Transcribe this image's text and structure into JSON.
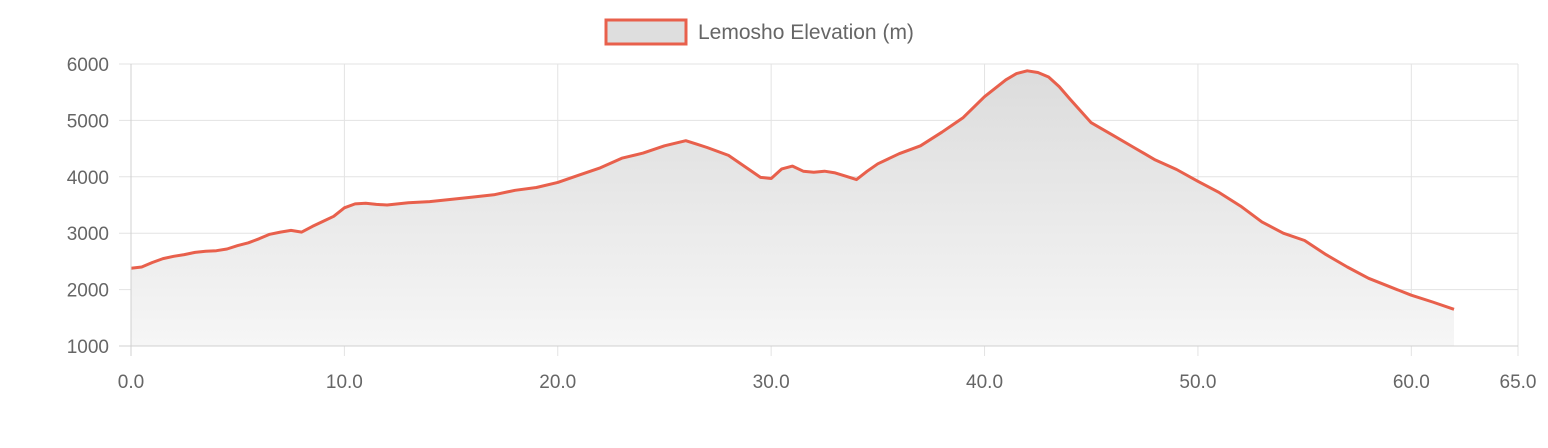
{
  "chart_data": {
    "type": "area",
    "title": "",
    "xlabel": "",
    "ylabel": "",
    "legend": {
      "position": "top",
      "entries": [
        "Lemosho Elevation (m)"
      ]
    },
    "series": [
      {
        "name": "Lemosho Elevation (m)",
        "x": [
          0.0,
          0.5,
          1.0,
          1.5,
          2.0,
          2.5,
          3.0,
          3.5,
          4.0,
          4.5,
          5.0,
          5.5,
          6.0,
          6.5,
          7.0,
          7.5,
          8.0,
          8.5,
          9.0,
          9.5,
          10.0,
          10.5,
          11.0,
          11.5,
          12.0,
          13.0,
          14.0,
          15.0,
          16.0,
          17.0,
          18.0,
          19.0,
          20.0,
          21.0,
          22.0,
          23.0,
          24.0,
          25.0,
          26.0,
          26.5,
          27.0,
          28.0,
          29.0,
          29.5,
          30.0,
          30.5,
          31.0,
          31.5,
          32.0,
          32.5,
          33.0,
          33.5,
          34.0,
          34.5,
          35.0,
          36.0,
          37.0,
          38.0,
          39.0,
          40.0,
          41.0,
          41.5,
          42.0,
          42.5,
          43.0,
          43.5,
          44.0,
          45.0,
          46.0,
          47.0,
          48.0,
          49.0,
          50.0,
          51.0,
          52.0,
          53.0,
          54.0,
          55.0,
          56.0,
          57.0,
          58.0,
          59.0,
          60.0,
          61.0,
          62.0
        ],
        "values": [
          2380,
          2400,
          2480,
          2550,
          2590,
          2620,
          2660,
          2680,
          2690,
          2720,
          2780,
          2830,
          2900,
          2980,
          3020,
          3050,
          3020,
          3120,
          3210,
          3300,
          3450,
          3520,
          3530,
          3510,
          3500,
          3540,
          3560,
          3600,
          3640,
          3680,
          3760,
          3810,
          3900,
          4030,
          4160,
          4330,
          4420,
          4550,
          4640,
          4580,
          4520,
          4380,
          4120,
          3990,
          3970,
          4140,
          4190,
          4100,
          4080,
          4100,
          4070,
          4010,
          3950,
          4100,
          4230,
          4410,
          4550,
          4790,
          5050,
          5420,
          5720,
          5830,
          5880,
          5850,
          5770,
          5600,
          5380,
          4960,
          4740,
          4520,
          4300,
          4130,
          3920,
          3720,
          3480,
          3200,
          3000,
          2870,
          2620,
          2400,
          2200,
          2050,
          1900,
          1780,
          1650
        ]
      }
    ],
    "xlim": [
      0,
      65
    ],
    "ylim": [
      1000,
      6000
    ],
    "x_ticks": [
      "0.0",
      "10.0",
      "20.0",
      "30.0",
      "40.0",
      "50.0",
      "60.0",
      "65.0"
    ],
    "y_ticks": [
      "1000",
      "2000",
      "3000",
      "4000",
      "5000",
      "6000"
    ],
    "grid": true,
    "colors": {
      "line": "#e8604c",
      "fill_top": "#dcdcdc",
      "fill_bottom": "#f6f6f6",
      "grid": "#e3e3e3",
      "tick_text": "#666666"
    }
  }
}
